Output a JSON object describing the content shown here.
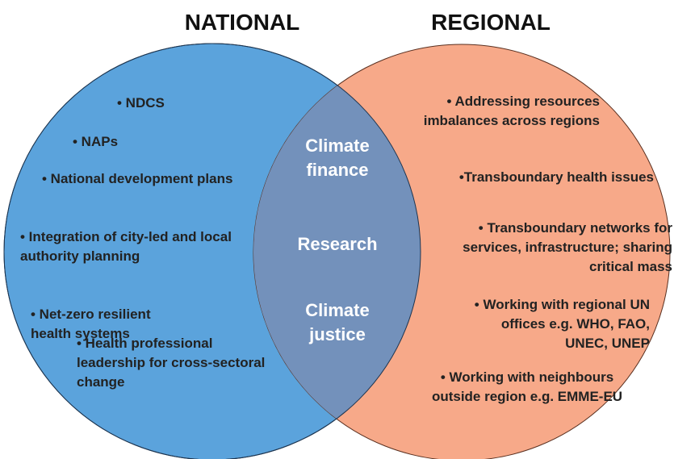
{
  "titles": {
    "left": "NATIONAL",
    "right": "REGIONAL"
  },
  "national": [
    "• NDCS",
    "• NAPs",
    "• National development plans",
    "• Integration of city-led and local authority planning",
    "• Net-zero resilient health systems",
    "• Health professional leadership for cross-sectoral change"
  ],
  "overlap": [
    "Climate finance",
    "Research",
    "Climate justice"
  ],
  "regional": [
    "• Addressing resources imbalances across regions",
    "•Transboundary health issues",
    "• Transboundary networks for services, infrastructure; sharing critical mass",
    "• Working with regional UN offices e.g. WHO, FAO, UNEC, UNEP",
    "• Working with neighbours outside region e.g. EMME-EU"
  ]
}
